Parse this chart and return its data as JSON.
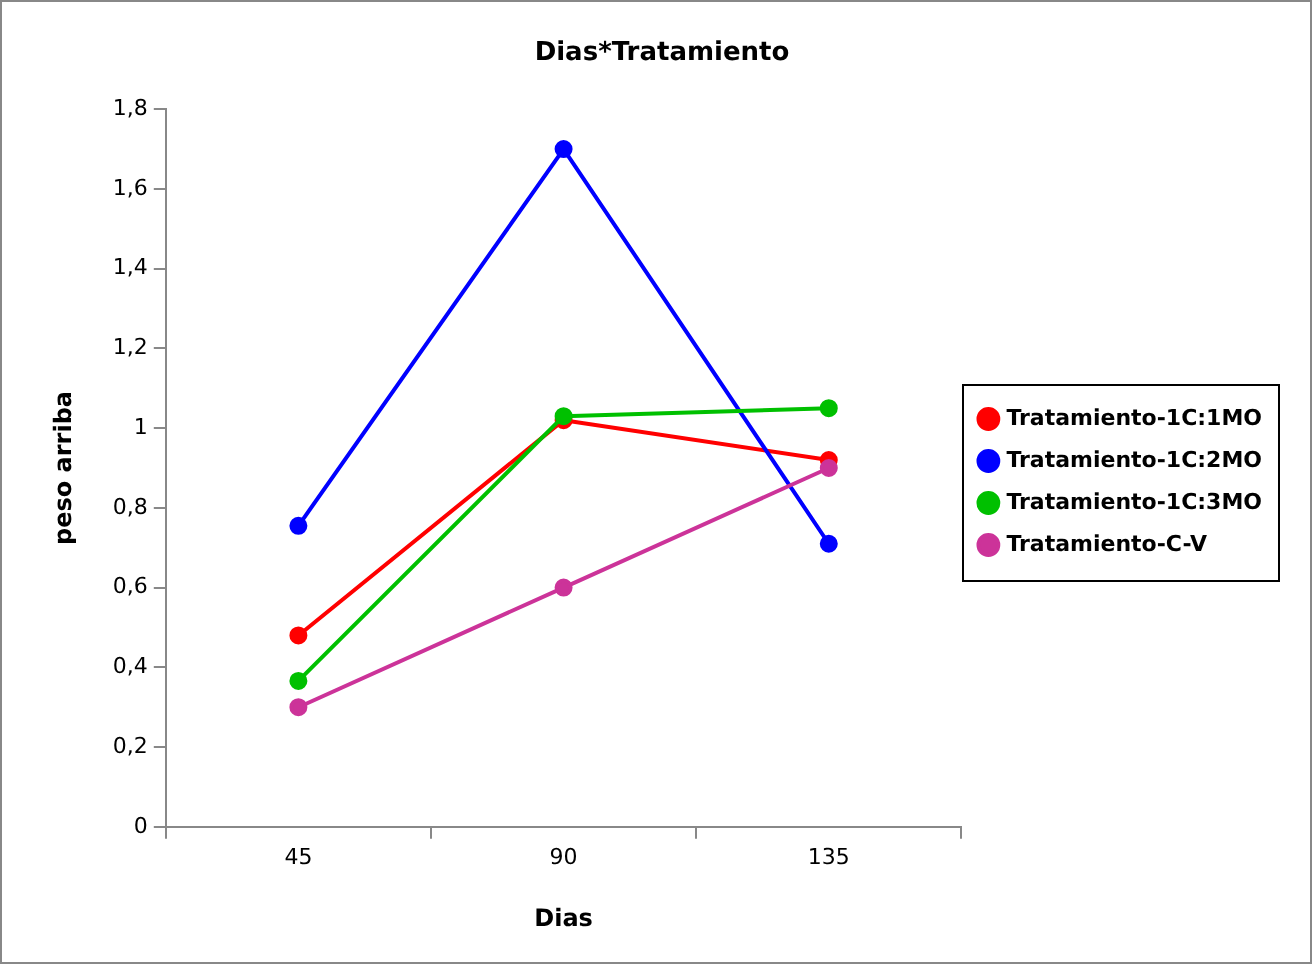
{
  "chart_data": {
    "type": "line",
    "title": "Dias*Tratamiento",
    "xlabel": "Dias",
    "ylabel": "peso arriba",
    "categories": [
      "45",
      "90",
      "135"
    ],
    "series": [
      {
        "name": "Tratamiento-1C:1MO",
        "color": "#ff0000",
        "values": [
          0.48,
          1.02,
          0.92
        ]
      },
      {
        "name": "Tratamiento-1C:2MO",
        "color": "#0000ff",
        "values": [
          0.755,
          1.7,
          0.71
        ]
      },
      {
        "name": "Tratamiento-1C:3MO",
        "color": "#00c000",
        "values": [
          0.366,
          1.03,
          1.05
        ]
      },
      {
        "name": "Tratamiento-C-V",
        "color": "#cc3399",
        "values": [
          0.3,
          0.6,
          0.9
        ]
      }
    ],
    "ylim": [
      0,
      1.8
    ],
    "yticks": [
      {
        "value": 0,
        "label": "0"
      },
      {
        "value": 0.2,
        "label": "0,2"
      },
      {
        "value": 0.4,
        "label": "0,4"
      },
      {
        "value": 0.6,
        "label": "0,6"
      },
      {
        "value": 0.8,
        "label": "0,8"
      },
      {
        "value": 1,
        "label": "1"
      },
      {
        "value": 1.2,
        "label": "1,2"
      },
      {
        "value": 1.4,
        "label": "1,4"
      },
      {
        "value": 1.6,
        "label": "1,6"
      },
      {
        "value": 1.8,
        "label": "1,8"
      }
    ],
    "grid": false,
    "legend": "right",
    "marker": "circle",
    "line_style": "solid"
  }
}
